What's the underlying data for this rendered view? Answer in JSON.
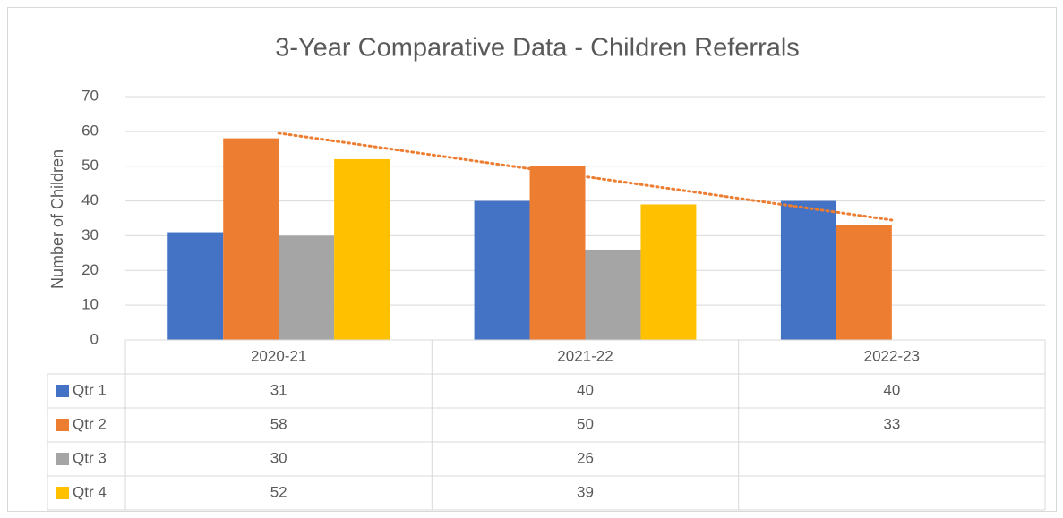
{
  "chart_data": {
    "type": "bar",
    "title": "3-Year Comparative Data - Children Referrals",
    "y_label": "Number of Children",
    "categories": [
      "2020-21",
      "2021-22",
      "2022-23"
    ],
    "series": [
      {
        "name": "Qtr 1",
        "color": "#4472c4",
        "values": [
          31,
          40,
          40
        ]
      },
      {
        "name": "Qtr 2",
        "color": "#ed7d31",
        "values": [
          58,
          50,
          33
        ]
      },
      {
        "name": "Qtr 3",
        "color": "#a5a5a5",
        "values": [
          30,
          26,
          null
        ]
      },
      {
        "name": "Qtr 4",
        "color": "#ffc000",
        "values": [
          52,
          39,
          null
        ]
      }
    ],
    "ylim": [
      0,
      70
    ],
    "yticks": [
      0,
      10,
      20,
      30,
      40,
      50,
      60,
      70
    ],
    "grid": true,
    "data_table": true,
    "trendline": {
      "series": 1,
      "type": "linear"
    }
  }
}
